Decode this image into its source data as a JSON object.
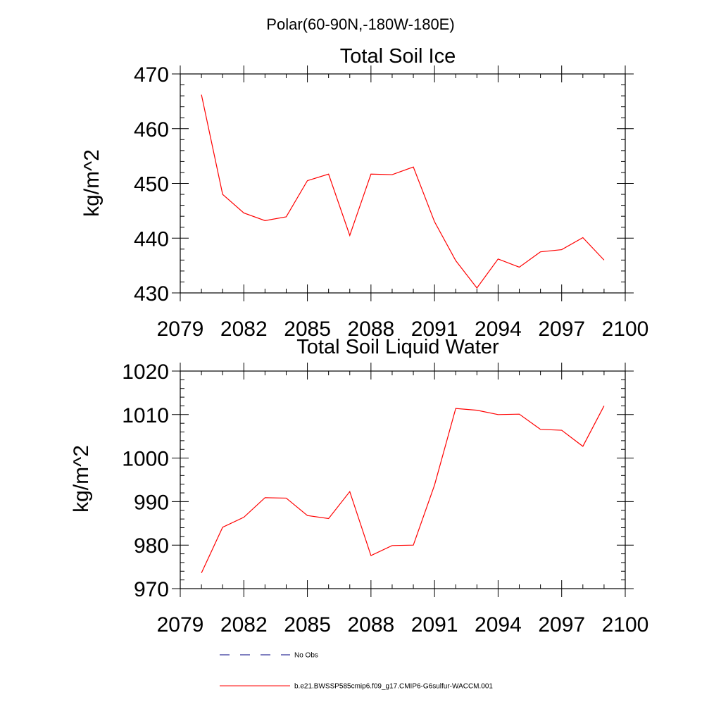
{
  "suptitle": "Polar(60-90N,-180W-180E)",
  "chart_data": [
    {
      "type": "line",
      "title": "Total Soil Ice",
      "ylabel": "kg/m^2",
      "xlim": [
        2079,
        2100
      ],
      "ylim": [
        430,
        470
      ],
      "xticks": [
        2079,
        2082,
        2085,
        2088,
        2091,
        2094,
        2097,
        2100
      ],
      "yticks": [
        430,
        440,
        450,
        460,
        470
      ],
      "x": [
        2080,
        2081,
        2082,
        2083,
        2084,
        2085,
        2086,
        2087,
        2088,
        2089,
        2090,
        2091,
        2092,
        2093,
        2094,
        2095,
        2096,
        2097,
        2098,
        2099
      ],
      "series": [
        {
          "name": "b.e21.BWSSP585cmip6.f09_g17.CMIP6-G6sulfur-WACCM.001",
          "color": "#ff0000",
          "values": [
            466.2,
            448.0,
            444.6,
            443.2,
            443.9,
            450.5,
            451.7,
            440.5,
            451.7,
            451.6,
            453.0,
            443.0,
            435.9,
            430.9,
            436.2,
            434.7,
            437.5,
            437.9,
            440.1,
            436.0
          ]
        }
      ]
    },
    {
      "type": "line",
      "title": "Total Soil Liquid Water",
      "ylabel": "kg/m^2",
      "xlim": [
        2079,
        2100
      ],
      "ylim": [
        970,
        1020
      ],
      "xticks": [
        2079,
        2082,
        2085,
        2088,
        2091,
        2094,
        2097,
        2100
      ],
      "yticks": [
        970,
        980,
        990,
        1000,
        1010,
        1020
      ],
      "x": [
        2080,
        2081,
        2082,
        2083,
        2084,
        2085,
        2086,
        2087,
        2088,
        2089,
        2090,
        2091,
        2092,
        2093,
        2094,
        2095,
        2096,
        2097,
        2098,
        2099
      ],
      "series": [
        {
          "name": "b.e21.BWSSP585cmip6.f09_g17.CMIP6-G6sulfur-WACCM.001",
          "color": "#ff0000",
          "values": [
            973.6,
            984.1,
            986.4,
            990.9,
            990.8,
            986.8,
            986.1,
            992.3,
            977.6,
            979.9,
            980.0,
            993.8,
            1011.4,
            1011.0,
            1010.0,
            1010.1,
            1006.6,
            1006.4,
            1002.7,
            1012.0
          ]
        }
      ]
    }
  ],
  "legend": {
    "placement": "bottom-left",
    "entries": [
      {
        "label": "No Obs",
        "style": "dashed",
        "color": "#000080"
      },
      {
        "label": "b.e21.BWSSP585cmip6.f09_g17.CMIP6-G6sulfur-WACCM.001",
        "style": "solid",
        "color": "#ff0000"
      }
    ]
  }
}
